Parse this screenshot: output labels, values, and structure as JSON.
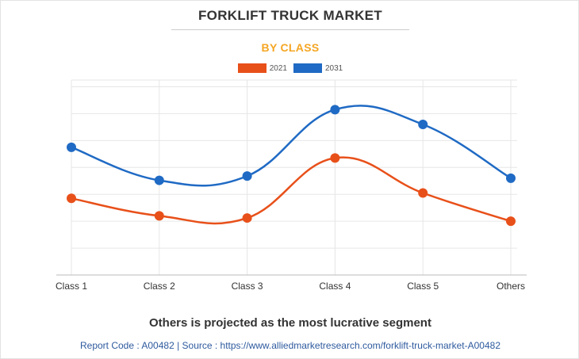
{
  "header": {
    "title": "FORKLIFT TRUCK MARKET",
    "subtitle": "BY CLASS"
  },
  "colors": {
    "series_2021": "#e8501a",
    "series_2031": "#1f6ac4",
    "title": "#333333",
    "subtitle": "#f5a623",
    "source": "#2e5a9e"
  },
  "chart_data": {
    "type": "line",
    "categories": [
      "Class 1",
      "Class 2",
      "Class 3",
      "Class 4",
      "Class 5",
      "Others"
    ],
    "series": [
      {
        "name": "2021",
        "color": "#e8501a",
        "values": [
          1.85,
          1.2,
          1.12,
          3.35,
          2.05,
          1.0
        ]
      },
      {
        "name": "2031",
        "color": "#1f6ac4",
        "values": [
          3.75,
          2.52,
          2.68,
          5.15,
          4.6,
          2.6
        ]
      }
    ],
    "ylim": [
      -1,
      6.25
    ],
    "y_gridlines": [
      0,
      1,
      2,
      3,
      4,
      5,
      6
    ],
    "smooth": true,
    "legend": "top-center",
    "grid": true
  },
  "footer": {
    "headline": "Others is projected as the most lucrative segment",
    "source": "Report Code : A00482  |  Source : https://www.alliedmarketresearch.com/forklift-truck-market-A00482"
  }
}
